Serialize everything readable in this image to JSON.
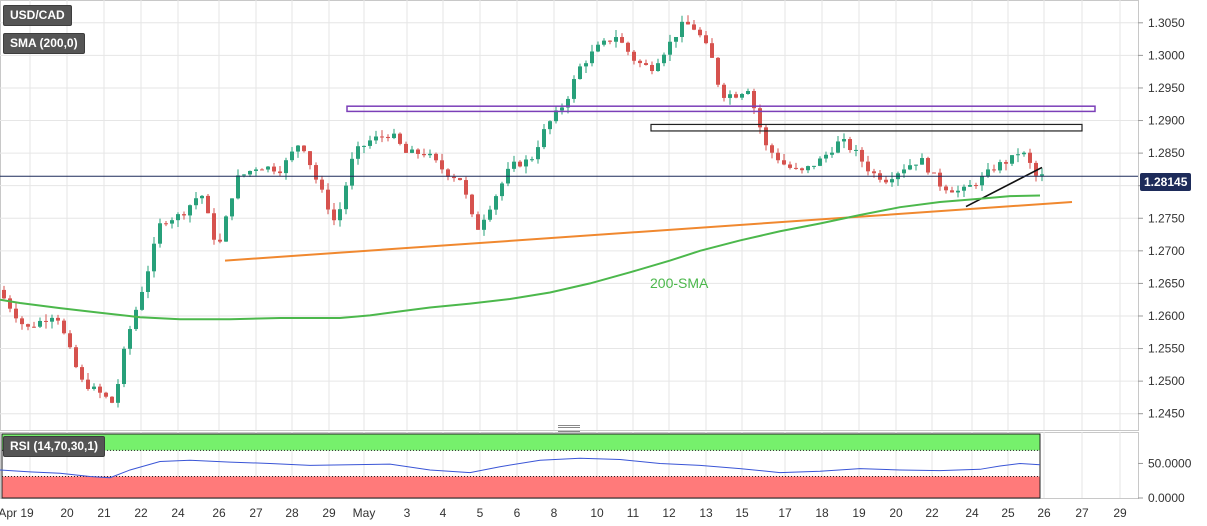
{
  "symbol": "USD/CAD",
  "indicator_label": "SMA (200,0)",
  "rsi_label": "RSI (14,70,30,1)",
  "sma_annotation": "200-SMA",
  "last_price_label": "1.28145",
  "colors": {
    "bull": "#27a07a",
    "bear": "#d6524e",
    "sma": "#4cb84c",
    "support": "#f0882f",
    "trend": "#111111",
    "resistance_upper": "#7b3fb8",
    "resistance_lower": "#222222",
    "rsi_line": "#3a55d6",
    "overbought": "#76f06c",
    "oversold": "#ff7a7a",
    "last_price_bg": "#1d2b5a"
  },
  "chart_data": [
    {
      "type": "candlestick",
      "title": "USD/CAD",
      "y_ticks": [
        "1.3050",
        "1.3000",
        "1.2950",
        "1.2900",
        "1.2850",
        "1.2800",
        "1.2750",
        "1.2700",
        "1.2650",
        "1.2600",
        "1.2550",
        "1.2500",
        "1.2450"
      ],
      "x_ticks": [
        "Apr 19",
        "20",
        "21",
        "22",
        "24",
        "26",
        "27",
        "28",
        "29",
        "May",
        "3",
        "4",
        "5",
        "6",
        "8",
        "10",
        "11",
        "12",
        "13",
        "15",
        "17",
        "18",
        "19",
        "20",
        "22",
        "24",
        "25",
        "26",
        "27",
        "29"
      ],
      "ylim": [
        1.2425,
        1.3085
      ],
      "last_price": 1.28145,
      "series": [
        {
          "name": "SMA (200,0)",
          "points": [
            [
              0,
              1.2625
            ],
            [
              20,
              1.262
            ],
            [
              60,
              1.2612
            ],
            [
              100,
              1.2605
            ],
            [
              140,
              1.2598
            ],
            [
              180,
              1.2595
            ],
            [
              230,
              1.2595
            ],
            [
              280,
              1.2597
            ],
            [
              340,
              1.2597
            ],
            [
              370,
              1.2601
            ],
            [
              400,
              1.2607
            ],
            [
              430,
              1.2613
            ],
            [
              470,
              1.2619
            ],
            [
              510,
              1.2626
            ],
            [
              550,
              1.2636
            ],
            [
              590,
              1.265
            ],
            [
              630,
              1.2667
            ],
            [
              670,
              1.2685
            ],
            [
              700,
              1.27
            ],
            [
              740,
              1.2716
            ],
            [
              780,
              1.273
            ],
            [
              820,
              1.2742
            ],
            [
              860,
              1.2755
            ],
            [
              900,
              1.2767
            ],
            [
              940,
              1.2775
            ],
            [
              980,
              1.278
            ],
            [
              1010,
              1.2784
            ],
            [
              1040,
              1.2785
            ]
          ]
        }
      ],
      "overlays": [
        {
          "name": "support_line",
          "from": [
            225,
            1.2685
          ],
          "to": [
            1072,
            1.2775
          ]
        },
        {
          "name": "short_trendline",
          "from": [
            966,
            1.2768
          ],
          "to": [
            1042,
            1.2828
          ]
        },
        {
          "name": "resistance_zone_upper",
          "x": [
            347,
            1095
          ],
          "y": [
            1.2922,
            1.2914
          ]
        },
        {
          "name": "resistance_zone_lower",
          "x": [
            651,
            1082
          ],
          "y": [
            1.2894,
            1.2884
          ]
        },
        {
          "name": "last_price_line",
          "y": 1.28145
        }
      ]
    },
    {
      "type": "line",
      "title": "RSI (14,70,30,1)",
      "y_ticks": [
        "50.0000",
        "0.0000"
      ],
      "ylim": [
        0,
        100
      ],
      "levels": {
        "overbought": 70,
        "oversold": 30
      },
      "series": [
        {
          "name": "RSI",
          "points": [
            [
              0,
              40
            ],
            [
              30,
              37
            ],
            [
              60,
              35
            ],
            [
              90,
              30
            ],
            [
              110,
              28
            ],
            [
              130,
              40
            ],
            [
              160,
              53
            ],
            [
              190,
              55
            ],
            [
              230,
              52
            ],
            [
              270,
              50
            ],
            [
              310,
              47
            ],
            [
              350,
              48
            ],
            [
              390,
              49
            ],
            [
              430,
              40
            ],
            [
              470,
              36
            ],
            [
              500,
              45
            ],
            [
              540,
              55
            ],
            [
              580,
              58
            ],
            [
              620,
              56
            ],
            [
              660,
              50
            ],
            [
              700,
              47
            ],
            [
              740,
              42
            ],
            [
              780,
              36
            ],
            [
              820,
              38
            ],
            [
              860,
              42
            ],
            [
              900,
              40
            ],
            [
              940,
              39
            ],
            [
              980,
              41
            ],
            [
              1000,
              46
            ],
            [
              1020,
              50
            ],
            [
              1040,
              48
            ]
          ]
        }
      ]
    }
  ]
}
